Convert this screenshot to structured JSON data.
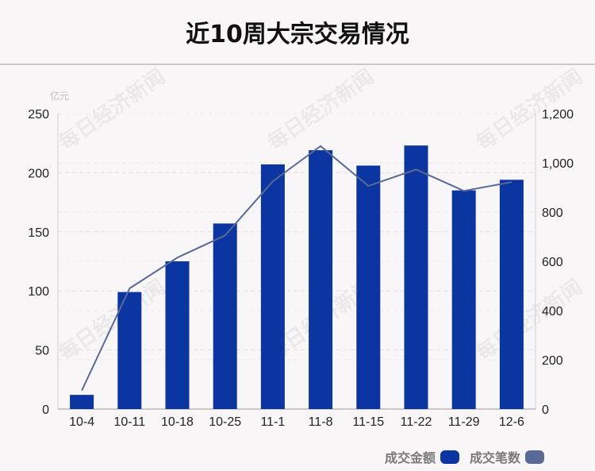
{
  "title": "近10周大宗交易情况",
  "watermark_text": "每日经济新闻",
  "colors": {
    "bar": "#0b35a0",
    "line": "#5a6a96"
  },
  "chart_data": {
    "type": "bar",
    "categories": [
      "10-4",
      "10-11",
      "10-18",
      "10-25",
      "11-1",
      "11-8",
      "11-15",
      "11-22",
      "11-29",
      "12-6"
    ],
    "series": [
      {
        "name": "成交金额",
        "type": "bar",
        "axis": "left",
        "values": [
          12,
          99,
          125,
          157,
          207,
          219,
          206,
          223,
          185,
          194
        ]
      },
      {
        "name": "成交笔数",
        "type": "line",
        "axis": "right",
        "values": [
          75,
          490,
          615,
          705,
          925,
          1068,
          906,
          973,
          886,
          922
        ]
      }
    ],
    "y_left": {
      "unit": "亿元",
      "range": [
        0,
        250
      ],
      "ticks": [
        "0",
        "50",
        "100",
        "150",
        "200",
        "250"
      ]
    },
    "y_right": {
      "range": [
        0,
        1200
      ],
      "ticks": [
        "0",
        "200",
        "400",
        "600",
        "800",
        "1,000",
        "1,200"
      ]
    },
    "grid": true,
    "legend_position": "bottom-right"
  }
}
